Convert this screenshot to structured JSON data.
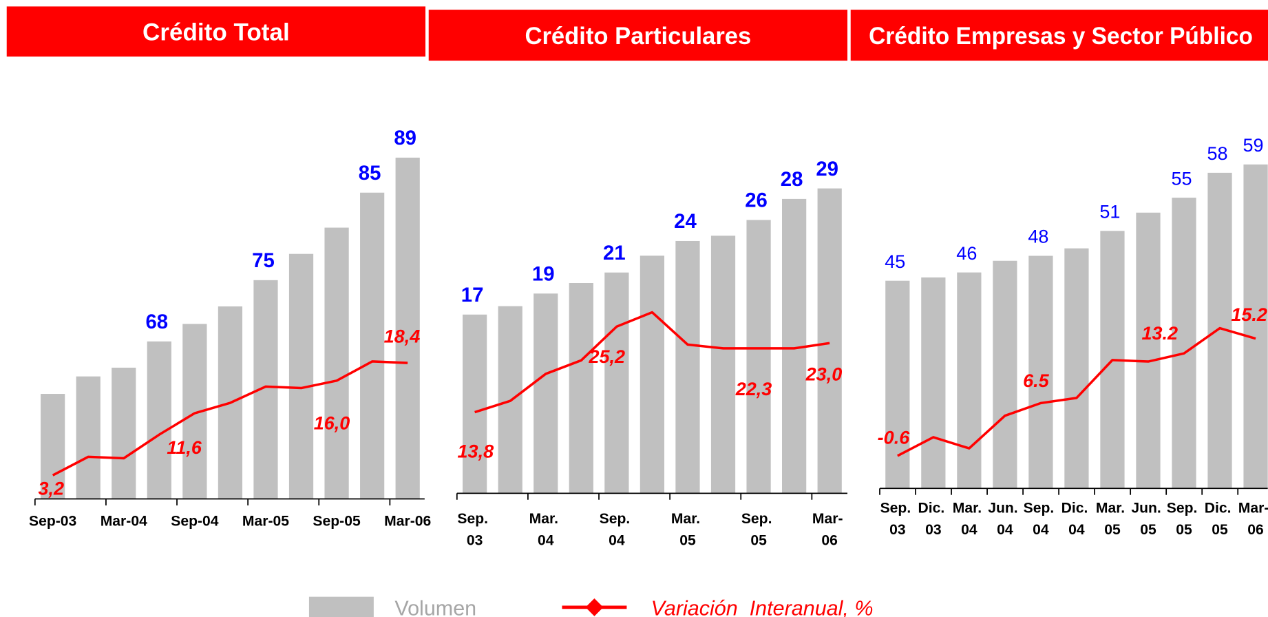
{
  "chart_data": [
    {
      "type": "bar_line",
      "title": "Crédito Total",
      "categories": [
        "Sep-03",
        null,
        "Mar-04",
        null,
        "Sep-04",
        null,
        "Mar-05",
        null,
        "Sep-05",
        null,
        "Mar-06"
      ],
      "ylim": [
        50,
        95
      ],
      "y2lim": [
        0,
        50
      ],
      "series": [
        {
          "name": "Volumen",
          "type": "bar",
          "color": "#c0c0c0",
          "values": [
            62,
            64,
            65,
            68,
            70,
            72,
            75,
            78,
            81,
            85,
            89
          ],
          "value_labels": [
            null,
            null,
            null,
            "68",
            null,
            null,
            "75",
            null,
            null,
            "85",
            "89"
          ]
        },
        {
          "name": "Variación  Interanual, %",
          "type": "line",
          "axis": "y2",
          "color": "#ff0000",
          "values": [
            3.2,
            5.7,
            5.5,
            8.7,
            11.6,
            13.0,
            15.2,
            15.0,
            16.0,
            18.6,
            18.4
          ],
          "value_labels": [
            "3,2",
            null,
            null,
            null,
            "11,6",
            null,
            null,
            null,
            "16,0",
            null,
            "18,4"
          ]
        }
      ]
    },
    {
      "type": "bar_line",
      "title": "Crédito Particulares",
      "categories": [
        "Sep.\n03",
        null,
        "Mar.\n04",
        null,
        "Sep.\n04",
        null,
        "Mar.\n05",
        null,
        "Sep.\n05",
        null,
        "Mar-\n06"
      ],
      "ylim": [
        0,
        34
      ],
      "y2lim": [
        3,
        45
      ],
      "series": [
        {
          "type": "bar",
          "color": "#c0c0c0",
          "values": [
            17,
            17.8,
            19,
            20,
            21,
            22.6,
            24,
            24.5,
            26,
            28,
            29
          ],
          "value_labels": [
            "17",
            null,
            "19",
            null,
            "21",
            null,
            "24",
            null,
            "26",
            "28",
            "29"
          ]
        },
        {
          "type": "line",
          "axis": "y2",
          "color": "#ff0000",
          "values": [
            13.8,
            15.3,
            18.9,
            20.7,
            25.2,
            27.1,
            22.8,
            22.3,
            22.3,
            22.3,
            23.0
          ],
          "value_labels": [
            "13,8",
            null,
            null,
            null,
            "25,2",
            null,
            null,
            null,
            "22,3",
            null,
            "23,0"
          ]
        }
      ]
    },
    {
      "type": "bar_line",
      "title": "Crédito Empresas y Sector Público",
      "categories": [
        "Sep.\n03",
        "Dic.\n03",
        "Mar.\n04",
        "Jun.\n04",
        "Sep.\n04",
        "Dic.\n04",
        "Mar.\n05",
        "Jun.\n05",
        "Sep.\n05",
        "Dic.\n05",
        "Mar-\n06"
      ],
      "ylim": [
        20,
        64
      ],
      "y2lim": [
        -5,
        35
      ],
      "series": [
        {
          "type": "bar",
          "color": "#c0c0c0",
          "values": [
            45,
            45.4,
            46,
            47.4,
            48,
            48.9,
            51,
            53.2,
            55,
            58,
            59
          ],
          "value_labels": [
            "45",
            null,
            "46",
            null,
            "48",
            null,
            "51",
            null,
            "55",
            "58",
            "59"
          ]
        },
        {
          "type": "line",
          "axis": "y2",
          "color": "#ff0000",
          "values": [
            -0.6,
            1.9,
            0.4,
            4.8,
            6.5,
            7.2,
            12.3,
            12.1,
            13.2,
            16.6,
            15.2
          ],
          "value_labels": [
            "-0.6",
            null,
            null,
            null,
            "6.5",
            null,
            null,
            null,
            "13.2",
            null,
            "15.2"
          ]
        }
      ]
    }
  ]
}
